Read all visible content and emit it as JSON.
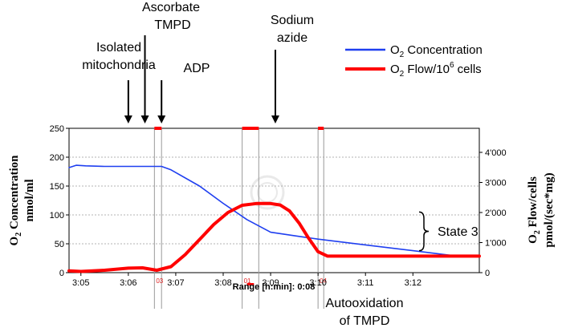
{
  "chart_data": {
    "type": "line",
    "x_unit": "minutes after 3:00",
    "xlim": [
      4.75,
      13.4
    ],
    "x_ticks": [
      5,
      6,
      7,
      8,
      9,
      10,
      11,
      12
    ],
    "x_tick_labels": [
      "3:05",
      "3:06",
      "3:07",
      "3:08",
      "3:09",
      "3:10",
      "3:11",
      "3:12"
    ],
    "xlabel": "Range [h:min]: 0:08",
    "left_axis": {
      "label_line1": "O",
      "label_sub": "2",
      "label_line1_rest": " Concentration",
      "label_line2": "nmol/ml",
      "ylim": [
        0,
        250
      ],
      "ticks": [
        0,
        50,
        100,
        150,
        200,
        250
      ],
      "tick_labels": [
        "0",
        "50",
        "100",
        "150",
        "200",
        "250"
      ]
    },
    "right_axis": {
      "label_line1": "O",
      "label_sub": "2",
      "label_line1_rest": " Flow/cells",
      "label_line2": "pmol/(sec*mg)",
      "ylim": [
        0,
        4800
      ],
      "ticks": [
        0,
        1000,
        2000,
        3000,
        4000
      ],
      "tick_labels": [
        "0",
        "1'000",
        "2'000",
        "3'000",
        "4'000"
      ]
    },
    "series": [
      {
        "name": "O2 Concentration",
        "axis": "left",
        "color": "#1f3ff0",
        "x": [
          4.75,
          4.9,
          5.1,
          5.5,
          6.0,
          6.5,
          6.7,
          6.9,
          7.5,
          8.0,
          8.5,
          9.0,
          9.5,
          10.0,
          11.0,
          12.0,
          12.8,
          13.4
        ],
        "y": [
          182,
          186,
          185,
          184,
          184,
          184,
          184,
          178,
          150,
          120,
          92,
          70,
          64,
          58,
          48,
          38,
          30,
          28
        ]
      },
      {
        "name": "O2 Flow/10^6 cells",
        "axis": "right",
        "color": "#ff0000",
        "x": [
          4.75,
          5.0,
          5.5,
          6.0,
          6.3,
          6.6,
          6.9,
          7.2,
          7.5,
          7.8,
          8.1,
          8.4,
          8.7,
          9.0,
          9.2,
          9.4,
          9.6,
          9.8,
          10.0,
          10.2,
          10.5,
          11.0,
          12.0,
          13.4
        ],
        "y": [
          60,
          40,
          80,
          150,
          160,
          80,
          200,
          600,
          1100,
          1600,
          2000,
          2240,
          2300,
          2300,
          2250,
          2050,
          1650,
          1150,
          700,
          550,
          550,
          550,
          550,
          550
        ]
      }
    ],
    "marker_windows": [
      {
        "label": "03",
        "x1": 6.55,
        "x2": 6.7
      },
      {
        "label": "01",
        "x1": 8.4,
        "x2": 8.75
      },
      {
        "label": "04",
        "x1": 10.0,
        "x2": 10.12
      }
    ],
    "state3_bracket": {
      "y_left_top": 105,
      "y_left_bottom": 38
    }
  },
  "legend": [
    {
      "name": "O",
      "sub": "2",
      "rest": " Concentration",
      "sup": "",
      "tail": "",
      "color": "#1f3ff0"
    },
    {
      "name": "O",
      "sub": "2",
      "rest": " Flow/10",
      "sup": "6",
      "tail": " cells",
      "color": "#ff0000"
    }
  ],
  "annotations": {
    "isolated_line1": "Isolated",
    "isolated_line2": "mitochondria",
    "ascorbate_line1": "Ascorbate",
    "ascorbate_line2": "TMPD",
    "adp": "ADP",
    "sodium_line1": "Sodium",
    "sodium_line2": "azide",
    "state3": "State 3",
    "autoox_line1": "Autooxidation",
    "autoox_line2": "of TMPD"
  },
  "arrows": [
    {
      "name": "isolated",
      "x": 6.0
    },
    {
      "name": "ascorbate",
      "x": 6.35
    },
    {
      "name": "adp",
      "x": 6.7
    },
    {
      "name": "sodium",
      "x": 9.1
    }
  ]
}
